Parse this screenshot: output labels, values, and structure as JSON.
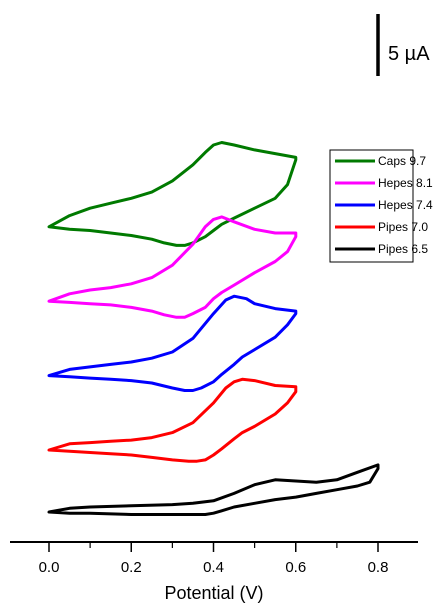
{
  "chart_data": {
    "type": "line",
    "title": "",
    "xlabel": "Potential (V)",
    "ylabel": "",
    "xlim": [
      -0.1,
      0.88
    ],
    "x_ticks": [
      0.0,
      0.2,
      0.4,
      0.6,
      0.8
    ],
    "x_tick_labels": [
      "0.0",
      "0.2",
      "0.4",
      "0.6",
      "0.8"
    ],
    "grid": false,
    "legend_position": "right",
    "scale_bar": {
      "label": "5 µA",
      "value_uA": 5
    },
    "series": [
      {
        "name": "Caps 9.7",
        "color": "#007a00",
        "offset_uA": 23.0,
        "x": [
          0.0,
          0.05,
          0.1,
          0.15,
          0.2,
          0.25,
          0.3,
          0.35,
          0.38,
          0.4,
          0.42,
          0.45,
          0.5,
          0.55,
          0.6,
          0.6,
          0.58,
          0.55,
          0.5,
          0.45,
          0.42,
          0.4,
          0.38,
          0.35,
          0.33,
          0.31,
          0.28,
          0.25,
          0.2,
          0.15,
          0.1,
          0.05,
          0.0
        ],
        "y": [
          0.0,
          0.9,
          1.5,
          1.9,
          2.3,
          2.8,
          3.7,
          5.0,
          6.0,
          6.6,
          6.8,
          6.6,
          6.2,
          5.9,
          5.6,
          5.4,
          3.4,
          2.3,
          1.5,
          0.7,
          0.2,
          -0.3,
          -0.8,
          -1.3,
          -1.5,
          -1.5,
          -1.3,
          -1.0,
          -0.7,
          -0.5,
          -0.3,
          -0.2,
          0.0
        ]
      },
      {
        "name": "Hepes 8.1",
        "color": "#ff00ff",
        "offset_uA": 17.0,
        "x": [
          0.0,
          0.05,
          0.1,
          0.15,
          0.2,
          0.25,
          0.3,
          0.35,
          0.38,
          0.4,
          0.42,
          0.45,
          0.5,
          0.55,
          0.6,
          0.6,
          0.58,
          0.55,
          0.5,
          0.45,
          0.42,
          0.4,
          0.38,
          0.35,
          0.33,
          0.31,
          0.28,
          0.25,
          0.2,
          0.15,
          0.1,
          0.05,
          0.0
        ],
        "y": [
          0.0,
          0.6,
          0.9,
          1.1,
          1.4,
          1.9,
          2.9,
          4.6,
          6.0,
          6.6,
          6.8,
          6.4,
          5.8,
          5.5,
          5.5,
          5.2,
          4.0,
          3.2,
          2.3,
          1.3,
          0.7,
          0.2,
          -0.5,
          -1.0,
          -1.3,
          -1.3,
          -1.1,
          -0.8,
          -0.5,
          -0.3,
          -0.2,
          -0.1,
          0.0
        ]
      },
      {
        "name": "Hepes 7.4",
        "color": "#0000ff",
        "offset_uA": 11.0,
        "x": [
          0.0,
          0.05,
          0.1,
          0.15,
          0.2,
          0.25,
          0.3,
          0.35,
          0.4,
          0.43,
          0.45,
          0.48,
          0.5,
          0.55,
          0.6,
          0.6,
          0.58,
          0.55,
          0.5,
          0.47,
          0.45,
          0.42,
          0.4,
          0.37,
          0.35,
          0.33,
          0.3,
          0.25,
          0.2,
          0.15,
          0.1,
          0.05,
          0.0
        ],
        "y": [
          0.0,
          0.5,
          0.7,
          0.9,
          1.1,
          1.4,
          1.9,
          3.0,
          5.0,
          6.1,
          6.4,
          6.2,
          5.8,
          5.4,
          5.2,
          5.0,
          4.1,
          3.1,
          2.1,
          1.5,
          0.9,
          0.1,
          -0.5,
          -1.0,
          -1.2,
          -1.2,
          -1.0,
          -0.6,
          -0.4,
          -0.3,
          -0.2,
          -0.1,
          0.0
        ]
      },
      {
        "name": "Pipes 7.0",
        "color": "#ff0000",
        "offset_uA": 5.0,
        "x": [
          0.0,
          0.05,
          0.1,
          0.15,
          0.2,
          0.25,
          0.3,
          0.35,
          0.4,
          0.43,
          0.45,
          0.47,
          0.5,
          0.55,
          0.6,
          0.6,
          0.58,
          0.55,
          0.5,
          0.47,
          0.45,
          0.42,
          0.4,
          0.38,
          0.36,
          0.34,
          0.3,
          0.25,
          0.2,
          0.15,
          0.1,
          0.05,
          0.0
        ],
        "y": [
          0.0,
          0.5,
          0.6,
          0.7,
          0.8,
          1.0,
          1.4,
          2.2,
          3.8,
          5.0,
          5.5,
          5.7,
          5.6,
          5.2,
          5.1,
          4.7,
          3.8,
          2.9,
          1.9,
          1.4,
          0.9,
          0.1,
          -0.4,
          -0.8,
          -0.9,
          -0.9,
          -0.8,
          -0.6,
          -0.4,
          -0.3,
          -0.2,
          -0.1,
          0.0
        ]
      },
      {
        "name": "Pipes 6.5",
        "color": "#000000",
        "offset_uA": 0.0,
        "x": [
          0.0,
          0.05,
          0.1,
          0.2,
          0.3,
          0.35,
          0.4,
          0.45,
          0.5,
          0.55,
          0.6,
          0.65,
          0.7,
          0.75,
          0.8,
          0.8,
          0.78,
          0.75,
          0.7,
          0.65,
          0.6,
          0.55,
          0.5,
          0.45,
          0.42,
          0.4,
          0.38,
          0.35,
          0.3,
          0.2,
          0.1,
          0.05,
          0.0
        ],
        "y": [
          0.0,
          0.3,
          0.4,
          0.5,
          0.6,
          0.7,
          0.9,
          1.5,
          2.2,
          2.6,
          2.5,
          2.4,
          2.6,
          3.2,
          3.8,
          3.5,
          2.4,
          2.1,
          1.8,
          1.5,
          1.2,
          1.0,
          0.7,
          0.4,
          0.1,
          -0.1,
          -0.2,
          -0.2,
          -0.2,
          -0.2,
          -0.1,
          -0.1,
          0.0
        ]
      }
    ]
  }
}
